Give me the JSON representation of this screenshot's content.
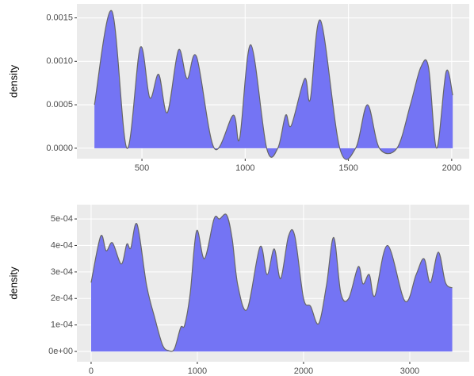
{
  "chart_data": [
    {
      "type": "area",
      "y_label": "density",
      "color": "#7474f4",
      "line_color": "#666666",
      "grid": true,
      "x": [
        270,
        354,
        427,
        492,
        538,
        581,
        623,
        677,
        719,
        765,
        850,
        942,
        973,
        1027,
        1104,
        1158,
        1196,
        1223,
        1288,
        1315,
        1365,
        1458,
        1535,
        1592,
        1650,
        1735,
        1800,
        1850,
        1888,
        1927,
        1973,
        2005
      ],
      "values": [
        0.0005,
        0.00158,
        0.0,
        0.00116,
        0.00058,
        0.00085,
        0.00041,
        0.00113,
        0.0008,
        0.00105,
        0.0,
        0.00038,
        0.00011,
        0.00119,
        0.0,
        0.0,
        0.00038,
        0.00026,
        0.0008,
        0.00056,
        0.00147,
        0.0,
        0.0,
        0.0005,
        0.0,
        0.0,
        0.0005,
        0.00093,
        0.00093,
        0.0,
        0.00088,
        0.00061
      ],
      "xlim": [
        185,
        2085
      ],
      "xticks": [
        500,
        1000,
        1500,
        2000
      ],
      "ylim": [
        -0.00012,
        0.00166
      ],
      "yticks": [
        {
          "value": 0,
          "label": "0.0000"
        },
        {
          "value": 0.0005,
          "label": "0.0005"
        },
        {
          "value": 0.001,
          "label": "0.0010"
        },
        {
          "value": 0.0015,
          "label": "0.0015"
        }
      ]
    },
    {
      "type": "area",
      "y_label": "density",
      "color": "#7474f4",
      "line_color": "#666666",
      "grid": true,
      "x": [
        0,
        90,
        142,
        201,
        284,
        336,
        373,
        433,
        522,
        597,
        672,
        731,
        784,
        843,
        881,
        933,
        993,
        1067,
        1157,
        1209,
        1276,
        1328,
        1381,
        1470,
        1590,
        1657,
        1724,
        1784,
        1858,
        1918,
        2000,
        2067,
        2142,
        2216,
        2284,
        2351,
        2425,
        2515,
        2560,
        2619,
        2672,
        2791,
        2955,
        3060,
        3134,
        3194,
        3269,
        3336,
        3400
      ],
      "values": [
        0.00026,
        0.000435,
        0.00038,
        0.00041,
        0.00033,
        0.000405,
        0.00039,
        0.00048,
        0.00025,
        0.00013,
        2.5e-05,
        3e-06,
        1e-05,
        9e-05,
        0.0001,
        0.00022,
        0.000455,
        0.00035,
        0.0005,
        0.0005,
        0.000515,
        0.000425,
        0.00025,
        0.00016,
        0.000395,
        0.00029,
        0.000387,
        0.000275,
        0.000435,
        0.000435,
        0.0002,
        0.00017,
        0.000105,
        0.00025,
        0.00043,
        0.00022,
        0.0002,
        0.00032,
        0.000255,
        0.00029,
        0.00021,
        0.0004,
        0.00019,
        0.00029,
        0.00035,
        0.00026,
        0.000375,
        0.00026,
        0.00024
      ],
      "xlim": [
        -134,
        3560
      ],
      "xticks": [
        0,
        1000,
        2000,
        3000
      ],
      "ylim": [
        -3.87e-05,
        0.000554
      ],
      "yticks": [
        {
          "value": 0,
          "label": "0e+00"
        },
        {
          "value": 0.0001,
          "label": "1e-04"
        },
        {
          "value": 0.0002,
          "label": "2e-04"
        },
        {
          "value": 0.0003,
          "label": "3e-04"
        },
        {
          "value": 0.0004,
          "label": "4e-04"
        },
        {
          "value": 0.0005,
          "label": "5e-04"
        }
      ]
    }
  ]
}
